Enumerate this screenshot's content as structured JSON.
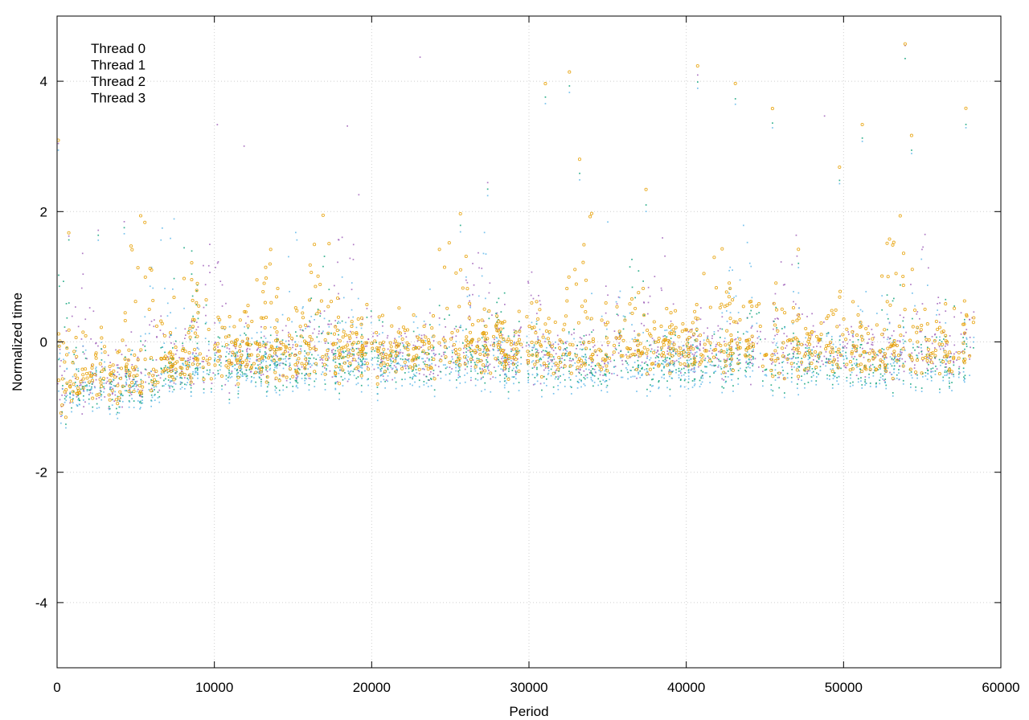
{
  "chart_data": {
    "type": "scatter",
    "title": "",
    "xlabel": "Period",
    "ylabel": "Normalized time",
    "xlim": [
      0,
      60000
    ],
    "ylim": [
      -5,
      5
    ],
    "x_ticks": [
      0,
      10000,
      20000,
      30000,
      40000,
      50000,
      60000
    ],
    "y_ticks": [
      -4,
      -2,
      0,
      2,
      4
    ],
    "x_tick_labels": [
      "0",
      "10000",
      "20000",
      "30000",
      "40000",
      "50000",
      "60000"
    ],
    "y_tick_labels": [
      "-4",
      "-2",
      "0",
      "2",
      "4"
    ],
    "grid": true,
    "legend_position": "top-left",
    "x_range_of_data": [
      0,
      58300
    ],
    "series": [
      {
        "name": "Thread 0",
        "color": "#9b59b6",
        "marker": "dot",
        "trend": [
          {
            "x": 0,
            "y": -0.85
          },
          {
            "x": 5000,
            "y": -0.6
          },
          {
            "x": 10000,
            "y": -0.35
          },
          {
            "x": 20000,
            "y": -0.25
          },
          {
            "x": 30000,
            "y": -0.3
          },
          {
            "x": 40000,
            "y": -0.25
          },
          {
            "x": 50000,
            "y": -0.2
          },
          {
            "x": 58300,
            "y": -0.2
          }
        ],
        "typical_spread": [
          -0.5,
          1.3
        ]
      },
      {
        "name": "Thread 1",
        "color": "#009e73",
        "marker": "dot",
        "trend": [
          {
            "x": 0,
            "y": -0.9
          },
          {
            "x": 5000,
            "y": -0.7
          },
          {
            "x": 10000,
            "y": -0.45
          },
          {
            "x": 20000,
            "y": -0.35
          },
          {
            "x": 30000,
            "y": -0.4
          },
          {
            "x": 40000,
            "y": -0.35
          },
          {
            "x": 50000,
            "y": -0.4
          },
          {
            "x": 58300,
            "y": -0.4
          }
        ],
        "typical_spread": [
          -0.6,
          0.9
        ]
      },
      {
        "name": "Thread 2",
        "color": "#56b4e9",
        "marker": "dot",
        "trend": [
          {
            "x": 0,
            "y": -0.95
          },
          {
            "x": 5000,
            "y": -0.8
          },
          {
            "x": 10000,
            "y": -0.5
          },
          {
            "x": 20000,
            "y": -0.45
          },
          {
            "x": 30000,
            "y": -0.5
          },
          {
            "x": 40000,
            "y": -0.45
          },
          {
            "x": 50000,
            "y": -0.45
          },
          {
            "x": 58300,
            "y": -0.45
          }
        ],
        "typical_spread": [
          -0.6,
          1.5
        ]
      },
      {
        "name": "Thread 3",
        "color": "#e69f00",
        "marker": "circle",
        "trend": [
          {
            "x": 0,
            "y": -0.8
          },
          {
            "x": 5000,
            "y": -0.55
          },
          {
            "x": 10000,
            "y": -0.3
          },
          {
            "x": 20000,
            "y": -0.2
          },
          {
            "x": 30000,
            "y": -0.2
          },
          {
            "x": 40000,
            "y": -0.1
          },
          {
            "x": 50000,
            "y": -0.2
          },
          {
            "x": 58300,
            "y": -0.15
          }
        ],
        "typical_spread": [
          -0.6,
          1.8
        ]
      }
    ]
  }
}
